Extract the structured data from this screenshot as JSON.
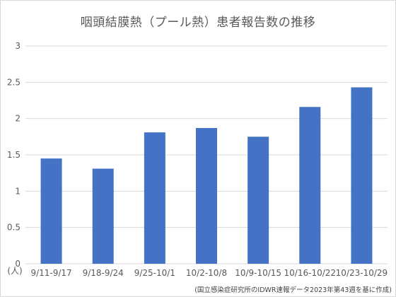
{
  "chart_data": {
    "type": "bar",
    "title": "咽頭結膜熱（プール熱）患者報告数の推移",
    "y_unit_label": "(人)",
    "categories": [
      "9/11-9/17",
      "9/18-9/24",
      "9/25-10/1",
      "10/2-10/8",
      "10/9-10/15",
      "10/16-10/22",
      "10/23-10/29"
    ],
    "values": [
      1.45,
      1.31,
      1.81,
      1.87,
      1.75,
      2.16,
      2.43
    ],
    "ylim": [
      0,
      3
    ],
    "yticks": [
      "0",
      "0.5",
      "1",
      "1.5",
      "2",
      "2.5",
      "3"
    ],
    "grid": true,
    "bar_color": "#4472c4",
    "grid_color": "#d9d9d9",
    "source_note": "(国立感染症研究所のIDWR速報データ2023年第43週を基に作成)"
  }
}
